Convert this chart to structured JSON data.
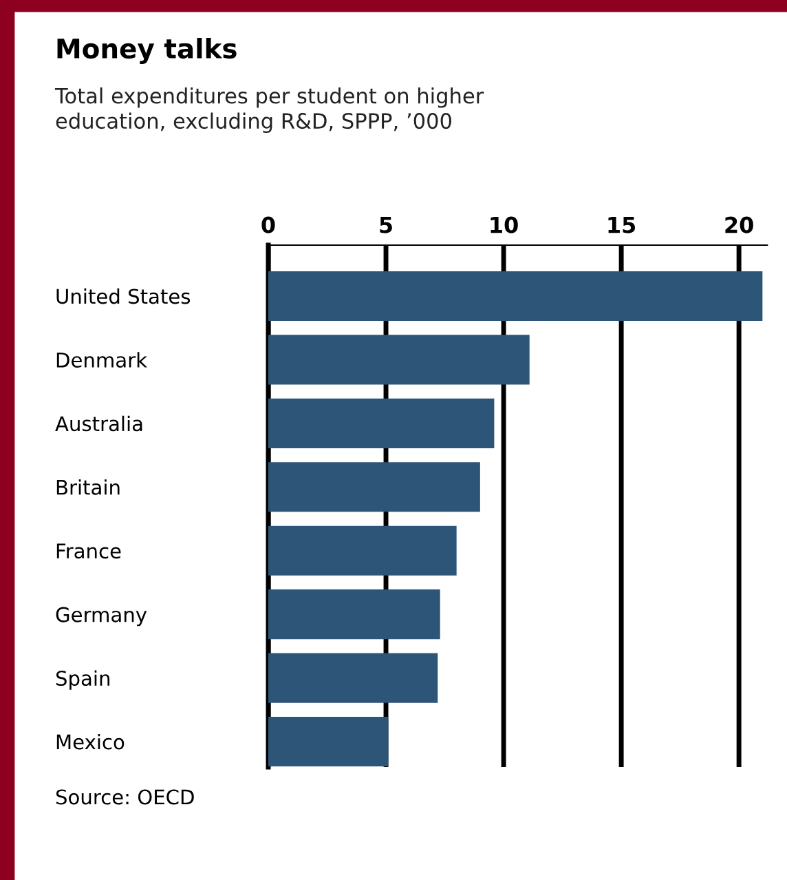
{
  "chart_data": {
    "type": "bar",
    "orientation": "horizontal",
    "title": "Money talks",
    "subtitle": "Total expenditures per student on higher\neducation, excluding R&D, SPPP, ’000",
    "categories": [
      "United States",
      "Denmark",
      "Australia",
      "Britain",
      "France",
      "Germany",
      "Spain",
      "Mexico"
    ],
    "values": [
      21.0,
      11.1,
      9.6,
      9.0,
      8.0,
      7.3,
      7.2,
      5.1
    ],
    "color": "#2d5577",
    "xlim": [
      0,
      21.2
    ],
    "xticks": [
      0,
      5,
      10,
      15,
      20
    ],
    "grid": "x",
    "annotations": [
      "Source: OECD"
    ]
  }
}
